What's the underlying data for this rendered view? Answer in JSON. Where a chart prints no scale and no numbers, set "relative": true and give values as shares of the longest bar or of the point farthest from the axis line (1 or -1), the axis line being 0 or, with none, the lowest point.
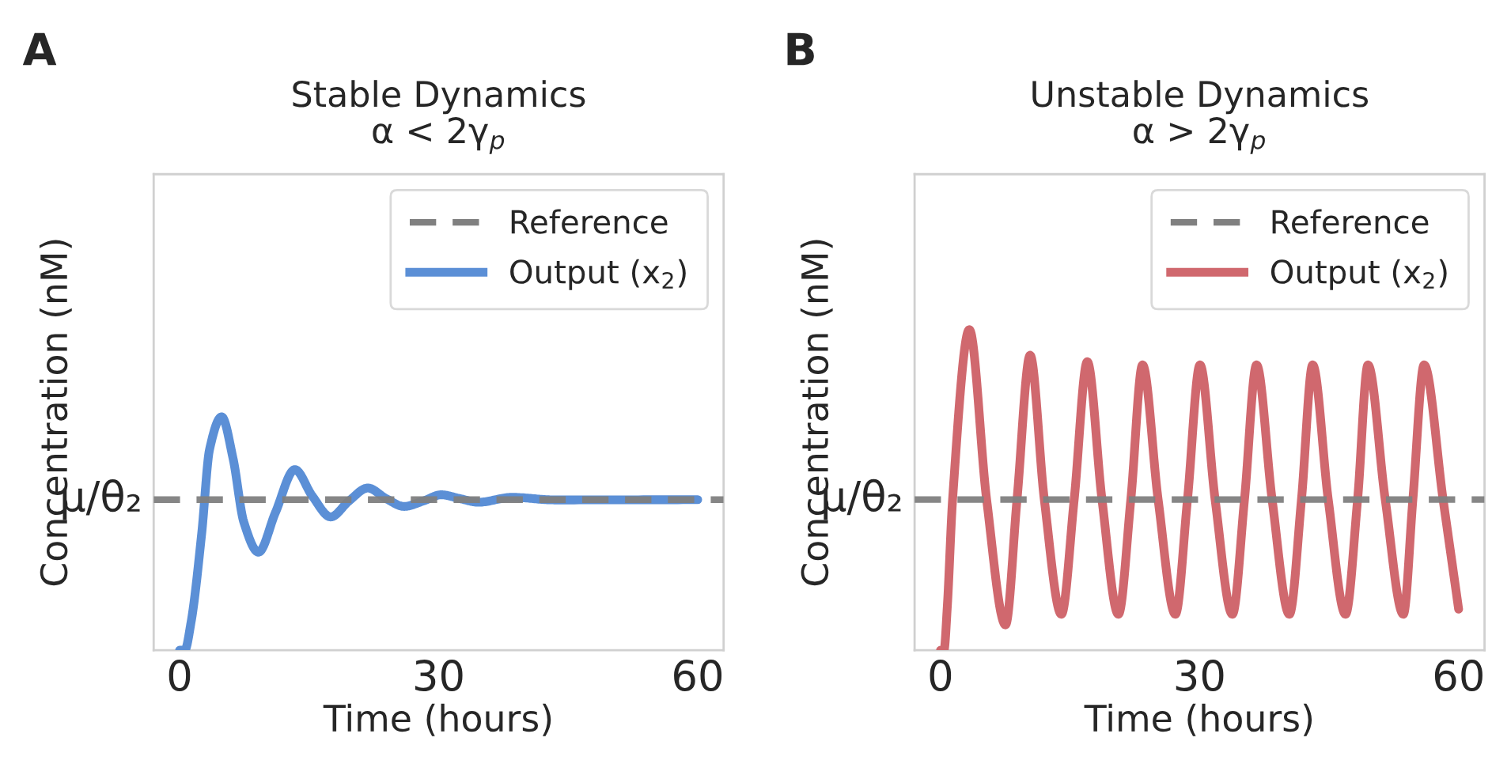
{
  "chart_data": [
    {
      "type": "line",
      "title": "Stable Dynamics",
      "subtitle": "α < 2γ$_{p}$",
      "xlabel": "Time (hours)",
      "ylabel": "Concentration (nM)",
      "annotations": [
        "A",
        "μ/θ₂"
      ],
      "relative": true,
      "xlim": [
        -3,
        63
      ],
      "xticks": [
        0,
        30,
        60
      ],
      "grid": false,
      "legend": "top right",
      "line_style": "solid",
      "marker": "none",
      "ref_lines": [
        {
          "axis": "y",
          "value": 0.645,
          "label": "Reference",
          "color": "#808080",
          "line_style": "dashed"
        }
      ],
      "series": [
        {
          "name": "Output (x$_{2}$)",
          "color": "#5b8fd6",
          "x": [
            0,
            0.6,
            1.33,
            2.56,
            3.47,
            4.87,
            6.2,
            7.43,
            9.14,
            11.1,
            13.35,
            15.36,
            17.5,
            19.6,
            21.8,
            23.9,
            26.0,
            28.2,
            30.3,
            32.4,
            34.6,
            38.5,
            43.4,
            60
          ],
          "values": [
            0,
            0,
            0.12,
            0.5,
            0.86,
            1.0,
            0.82,
            0.55,
            0.42,
            0.59,
            0.774,
            0.661,
            0.571,
            0.639,
            0.695,
            0.65,
            0.616,
            0.639,
            0.666,
            0.65,
            0.634,
            0.655,
            0.644,
            0.645
          ]
        }
      ]
    },
    {
      "type": "line",
      "title": "Unstable Dynamics",
      "subtitle": "α > 2γ$_{p}$",
      "xlabel": "Time (hours)",
      "ylabel": "Concentration (nM)",
      "annotations": [
        "B",
        "μ/θ₂"
      ],
      "relative": true,
      "xlim": [
        -3,
        63
      ],
      "xticks": [
        0,
        30,
        60
      ],
      "grid": false,
      "legend": "top right",
      "line_style": "solid",
      "marker": "none",
      "ref_lines": [
        {
          "axis": "y",
          "value": 0.47,
          "label": "Reference",
          "color": "#808080",
          "line_style": "dashed"
        }
      ],
      "series": [
        {
          "name": "Output (x$_{2}$)",
          "color": "#d0686e",
          "x": [
            0,
            0.4,
            0.79,
            1.4,
            3.34,
            5.34,
            7.53,
            8.86,
            10.38,
            12.02,
            14.0,
            15.48,
            17.0,
            18.7,
            20.6,
            22.04,
            23.4,
            25.2,
            27.2,
            28.6,
            30.05,
            31.8,
            33.8,
            35.2,
            36.6,
            38.4,
            40.4,
            41.8,
            43.1,
            44.9,
            46.9,
            48.3,
            49.5,
            51.5,
            53.6,
            54.7,
            56.0,
            58.2,
            60
          ],
          "values": [
            0,
            0,
            0.137,
            0.47,
            1.0,
            0.47,
            0.079,
            0.47,
            0.92,
            0.47,
            0.112,
            0.47,
            0.9,
            0.47,
            0.112,
            0.47,
            0.89,
            0.47,
            0.112,
            0.47,
            0.89,
            0.47,
            0.112,
            0.47,
            0.89,
            0.47,
            0.112,
            0.47,
            0.89,
            0.47,
            0.112,
            0.47,
            0.89,
            0.47,
            0.112,
            0.47,
            0.89,
            0.47,
            0.128
          ]
        }
      ]
    }
  ]
}
